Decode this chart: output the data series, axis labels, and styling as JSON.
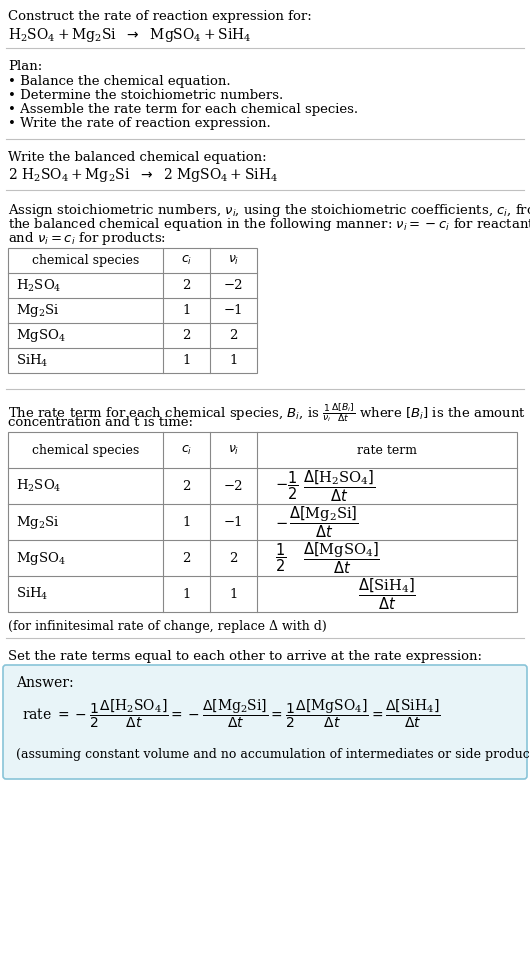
{
  "title_line1": "Construct the rate of reaction expression for:",
  "plan_title": "Plan:",
  "plan_items": [
    "• Balance the chemical equation.",
    "• Determine the stoichiometric numbers.",
    "• Assemble the rate term for each chemical species.",
    "• Write the rate of reaction expression."
  ],
  "balanced_label": "Write the balanced chemical equation:",
  "set_equal_text": "Set the rate terms equal to each other to arrive at the rate expression:",
  "answer_label": "Answer:",
  "answer_note": "(assuming constant volume and no accumulation of intermediates or side products)",
  "infinitesimal_note": "(for infinitesimal rate of change, replace Δ with d)",
  "bg_color": "#ffffff",
  "answer_box_color": "#e8f4f8",
  "answer_box_border": "#89c4d8",
  "text_color": "#000000",
  "table_border_color": "#888888",
  "species_formulas": [
    "$\\mathregular{H_2SO_4}$",
    "$\\mathregular{Mg_2Si}$",
    "$\\mathregular{MgSO_4}$",
    "$\\mathregular{SiH_4}$"
  ],
  "ci_vals": [
    "2",
    "1",
    "2",
    "1"
  ],
  "nu_vals": [
    "−2",
    "−1",
    "2",
    "1"
  ]
}
